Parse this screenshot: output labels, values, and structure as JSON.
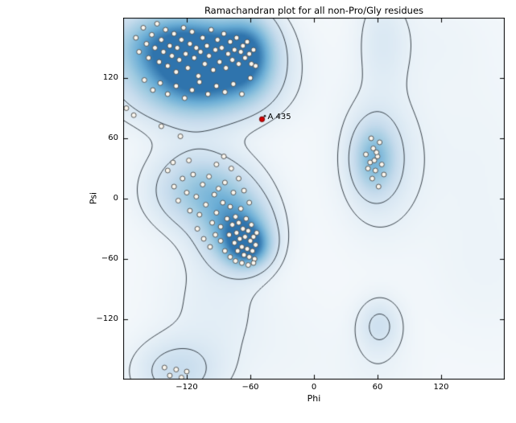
{
  "chart_data": {
    "type": "scatter",
    "title": "Ramachandran plot for all non-Pro/Gly residues",
    "xlabel": "Phi",
    "ylabel": "Psi",
    "xlim": [
      -180,
      180
    ],
    "ylim": [
      -180,
      180
    ],
    "xticks": [
      -120,
      -60,
      0,
      60,
      120
    ],
    "yticks": [
      -120,
      -60,
      0,
      60,
      120
    ],
    "grid": false,
    "legend": "none",
    "contour_levels": [
      0.12,
      0.3
    ],
    "colors": {
      "background": "#ffffff",
      "density_low": "#f4f8fb",
      "density_high": "#2f74ad",
      "contour_line": "#1e2830",
      "point_fill": "#faf6ee",
      "point_edge": "#4a4a4a",
      "highlight": "#d40000"
    },
    "highlight": {
      "label": "A 435",
      "phi": -49,
      "psi": 79,
      "color": "#d40000"
    },
    "density_regions": [
      {
        "name": "beta-core-left",
        "phi": -140,
        "psi": 152,
        "sigma_phi": 38,
        "sigma_psi": 26,
        "weight": 1.0
      },
      {
        "name": "beta-core-right",
        "phi": -95,
        "psi": 138,
        "sigma_phi": 38,
        "sigma_psi": 30,
        "weight": 1.0
      },
      {
        "name": "beta-right-lobe",
        "phi": -62,
        "psi": 148,
        "sigma_phi": 18,
        "sigma_psi": 26,
        "weight": 0.75
      },
      {
        "name": "beta-lower",
        "phi": -115,
        "psi": 106,
        "sigma_phi": 45,
        "sigma_psi": 22,
        "weight": 0.55
      },
      {
        "name": "beta-alpha-wash",
        "phi": -120,
        "psi": 70,
        "sigma_phi": 30,
        "sigma_psi": 28,
        "weight": 0.08
      },
      {
        "name": "alpha-upper",
        "phi": -105,
        "psi": 8,
        "sigma_phi": 32,
        "sigma_psi": 26,
        "weight": 0.75
      },
      {
        "name": "alpha-core",
        "phi": -72,
        "psi": -32,
        "sigma_phi": 22,
        "sigma_psi": 24,
        "weight": 1.0
      },
      {
        "name": "alpha-dense",
        "phi": -62,
        "psi": -48,
        "sigma_phi": 14,
        "sigma_psi": 14,
        "weight": 0.9
      },
      {
        "name": "alpha-tail",
        "phi": -95,
        "psi": -105,
        "sigma_phi": 35,
        "sigma_psi": 45,
        "weight": 0.16
      },
      {
        "name": "bottom-left",
        "phi": -130,
        "psi": -172,
        "sigma_phi": 28,
        "sigma_psi": 22,
        "weight": 0.4
      },
      {
        "name": "l-alpha-core",
        "phi": 57,
        "psi": 40,
        "sigma_phi": 14,
        "sigma_psi": 24,
        "weight": 0.65
      },
      {
        "name": "l-alpha-broad",
        "phi": 62,
        "psi": 40,
        "sigma_phi": 26,
        "sigma_psi": 48,
        "weight": 0.28
      },
      {
        "name": "l-alpha-column",
        "phi": 65,
        "psi": 160,
        "sigma_phi": 16,
        "sigma_psi": 34,
        "weight": 0.2
      },
      {
        "name": "small-bottom-right",
        "phi": 62,
        "psi": -126,
        "sigma_phi": 14,
        "sigma_psi": 18,
        "weight": 0.34
      },
      {
        "name": "wash-bottom-right",
        "phi": 60,
        "psi": -172,
        "sigma_phi": 25,
        "sigma_psi": 30,
        "weight": 0.08
      },
      {
        "name": "wash-right",
        "phi": 150,
        "psi": 40,
        "sigma_phi": 45,
        "sigma_psi": 70,
        "weight": 0.07
      },
      {
        "name": "wash-right-low",
        "phi": 165,
        "psi": -80,
        "sigma_phi": 40,
        "sigma_psi": 50,
        "weight": 0.06
      },
      {
        "name": "wash-top-right",
        "phi": 110,
        "psi": 160,
        "sigma_phi": 40,
        "sigma_psi": 35,
        "weight": 0.06
      },
      {
        "name": "wash-bottom-mid",
        "phi": -20,
        "psi": -155,
        "sigma_phi": 40,
        "sigma_psi": 40,
        "weight": 0.05
      }
    ],
    "points": [
      [
        -168,
        160
      ],
      [
        -165,
        146
      ],
      [
        -161,
        170
      ],
      [
        -158,
        154
      ],
      [
        -156,
        140
      ],
      [
        -153,
        163
      ],
      [
        -150,
        150
      ],
      [
        -148,
        174
      ],
      [
        -146,
        136
      ],
      [
        -144,
        158
      ],
      [
        -142,
        146
      ],
      [
        -140,
        168
      ],
      [
        -138,
        132
      ],
      [
        -136,
        152
      ],
      [
        -134,
        142
      ],
      [
        -132,
        164
      ],
      [
        -130,
        126
      ],
      [
        -129,
        150
      ],
      [
        -127,
        138
      ],
      [
        -125,
        158
      ],
      [
        -123,
        170
      ],
      [
        -121,
        144
      ],
      [
        -119,
        130
      ],
      [
        -117,
        154
      ],
      [
        -115,
        166
      ],
      [
        -113,
        140
      ],
      [
        -111,
        150
      ],
      [
        -109,
        122
      ],
      [
        -107,
        146
      ],
      [
        -105,
        160
      ],
      [
        -103,
        134
      ],
      [
        -101,
        152
      ],
      [
        -99,
        142
      ],
      [
        -97,
        168
      ],
      [
        -95,
        128
      ],
      [
        -93,
        148
      ],
      [
        -91,
        158
      ],
      [
        -89,
        136
      ],
      [
        -87,
        150
      ],
      [
        -85,
        164
      ],
      [
        -83,
        130
      ],
      [
        -81,
        144
      ],
      [
        -79,
        156
      ],
      [
        -77,
        138
      ],
      [
        -75,
        148
      ],
      [
        -73,
        160
      ],
      [
        -71,
        134
      ],
      [
        -69,
        146
      ],
      [
        -67,
        152
      ],
      [
        -65,
        140
      ],
      [
        -63,
        156
      ],
      [
        -61,
        144
      ],
      [
        -59,
        134
      ],
      [
        -57,
        148
      ],
      [
        -160,
        118
      ],
      [
        -152,
        108
      ],
      [
        -145,
        115
      ],
      [
        -138,
        104
      ],
      [
        -130,
        112
      ],
      [
        -122,
        100
      ],
      [
        -115,
        108
      ],
      [
        -108,
        116
      ],
      [
        -100,
        104
      ],
      [
        -92,
        112
      ],
      [
        -84,
        106
      ],
      [
        -76,
        114
      ],
      [
        -68,
        104
      ],
      [
        -60,
        120
      ],
      [
        -55,
        132
      ],
      [
        -177,
        90
      ],
      [
        -170,
        83
      ],
      [
        -144,
        72
      ],
      [
        -126,
        62
      ],
      [
        -138,
        28
      ],
      [
        -132,
        12
      ],
      [
        -128,
        -2
      ],
      [
        -124,
        20
      ],
      [
        -120,
        6
      ],
      [
        -117,
        -12
      ],
      [
        -114,
        24
      ],
      [
        -111,
        2
      ],
      [
        -108,
        -16
      ],
      [
        -105,
        14
      ],
      [
        -102,
        -6
      ],
      [
        -99,
        22
      ],
      [
        -96,
        -24
      ],
      [
        -94,
        4
      ],
      [
        -92,
        -14
      ],
      [
        -90,
        10
      ],
      [
        -88,
        -28
      ],
      [
        -86,
        -4
      ],
      [
        -84,
        16
      ],
      [
        -82,
        -20
      ],
      [
        -80,
        -36
      ],
      [
        -79,
        -8
      ],
      [
        -77,
        -26
      ],
      [
        -76,
        6
      ],
      [
        -75,
        -44
      ],
      [
        -74,
        -18
      ],
      [
        -73,
        -34
      ],
      [
        -72,
        -52
      ],
      [
        -71,
        -24
      ],
      [
        -70,
        -40
      ],
      [
        -69,
        -10
      ],
      [
        -68,
        -48
      ],
      [
        -67,
        -30
      ],
      [
        -66,
        -56
      ],
      [
        -65,
        -38
      ],
      [
        -64,
        -20
      ],
      [
        -63,
        -50
      ],
      [
        -62,
        -32
      ],
      [
        -61,
        -58
      ],
      [
        -60,
        -42
      ],
      [
        -59,
        -26
      ],
      [
        -58,
        -52
      ],
      [
        -57,
        -38
      ],
      [
        -56,
        -60
      ],
      [
        -55,
        -46
      ],
      [
        -54,
        -34
      ],
      [
        -88,
        -42
      ],
      [
        -93,
        -36
      ],
      [
        -98,
        -48
      ],
      [
        -104,
        -40
      ],
      [
        -110,
        -30
      ],
      [
        -84,
        -52
      ],
      [
        -79,
        -58
      ],
      [
        -74,
        -62
      ],
      [
        -68,
        -64
      ],
      [
        -62,
        -66
      ],
      [
        -57,
        -64
      ],
      [
        -92,
        34
      ],
      [
        -85,
        42
      ],
      [
        -78,
        30
      ],
      [
        -71,
        20
      ],
      [
        -66,
        8
      ],
      [
        -61,
        -4
      ],
      [
        -118,
        38
      ],
      [
        -133,
        36
      ],
      [
        49,
        44
      ],
      [
        53,
        36
      ],
      [
        56,
        50
      ],
      [
        58,
        28
      ],
      [
        60,
        42
      ],
      [
        62,
        56
      ],
      [
        55,
        20
      ],
      [
        51,
        30
      ],
      [
        64,
        34
      ],
      [
        54,
        60
      ],
      [
        59,
        46
      ],
      [
        66,
        24
      ],
      [
        57,
        38
      ],
      [
        61,
        12
      ],
      [
        -136,
        -176
      ],
      [
        -130,
        -170
      ],
      [
        -125,
        -178
      ],
      [
        -120,
        -172
      ],
      [
        -141,
        -168
      ]
    ]
  }
}
